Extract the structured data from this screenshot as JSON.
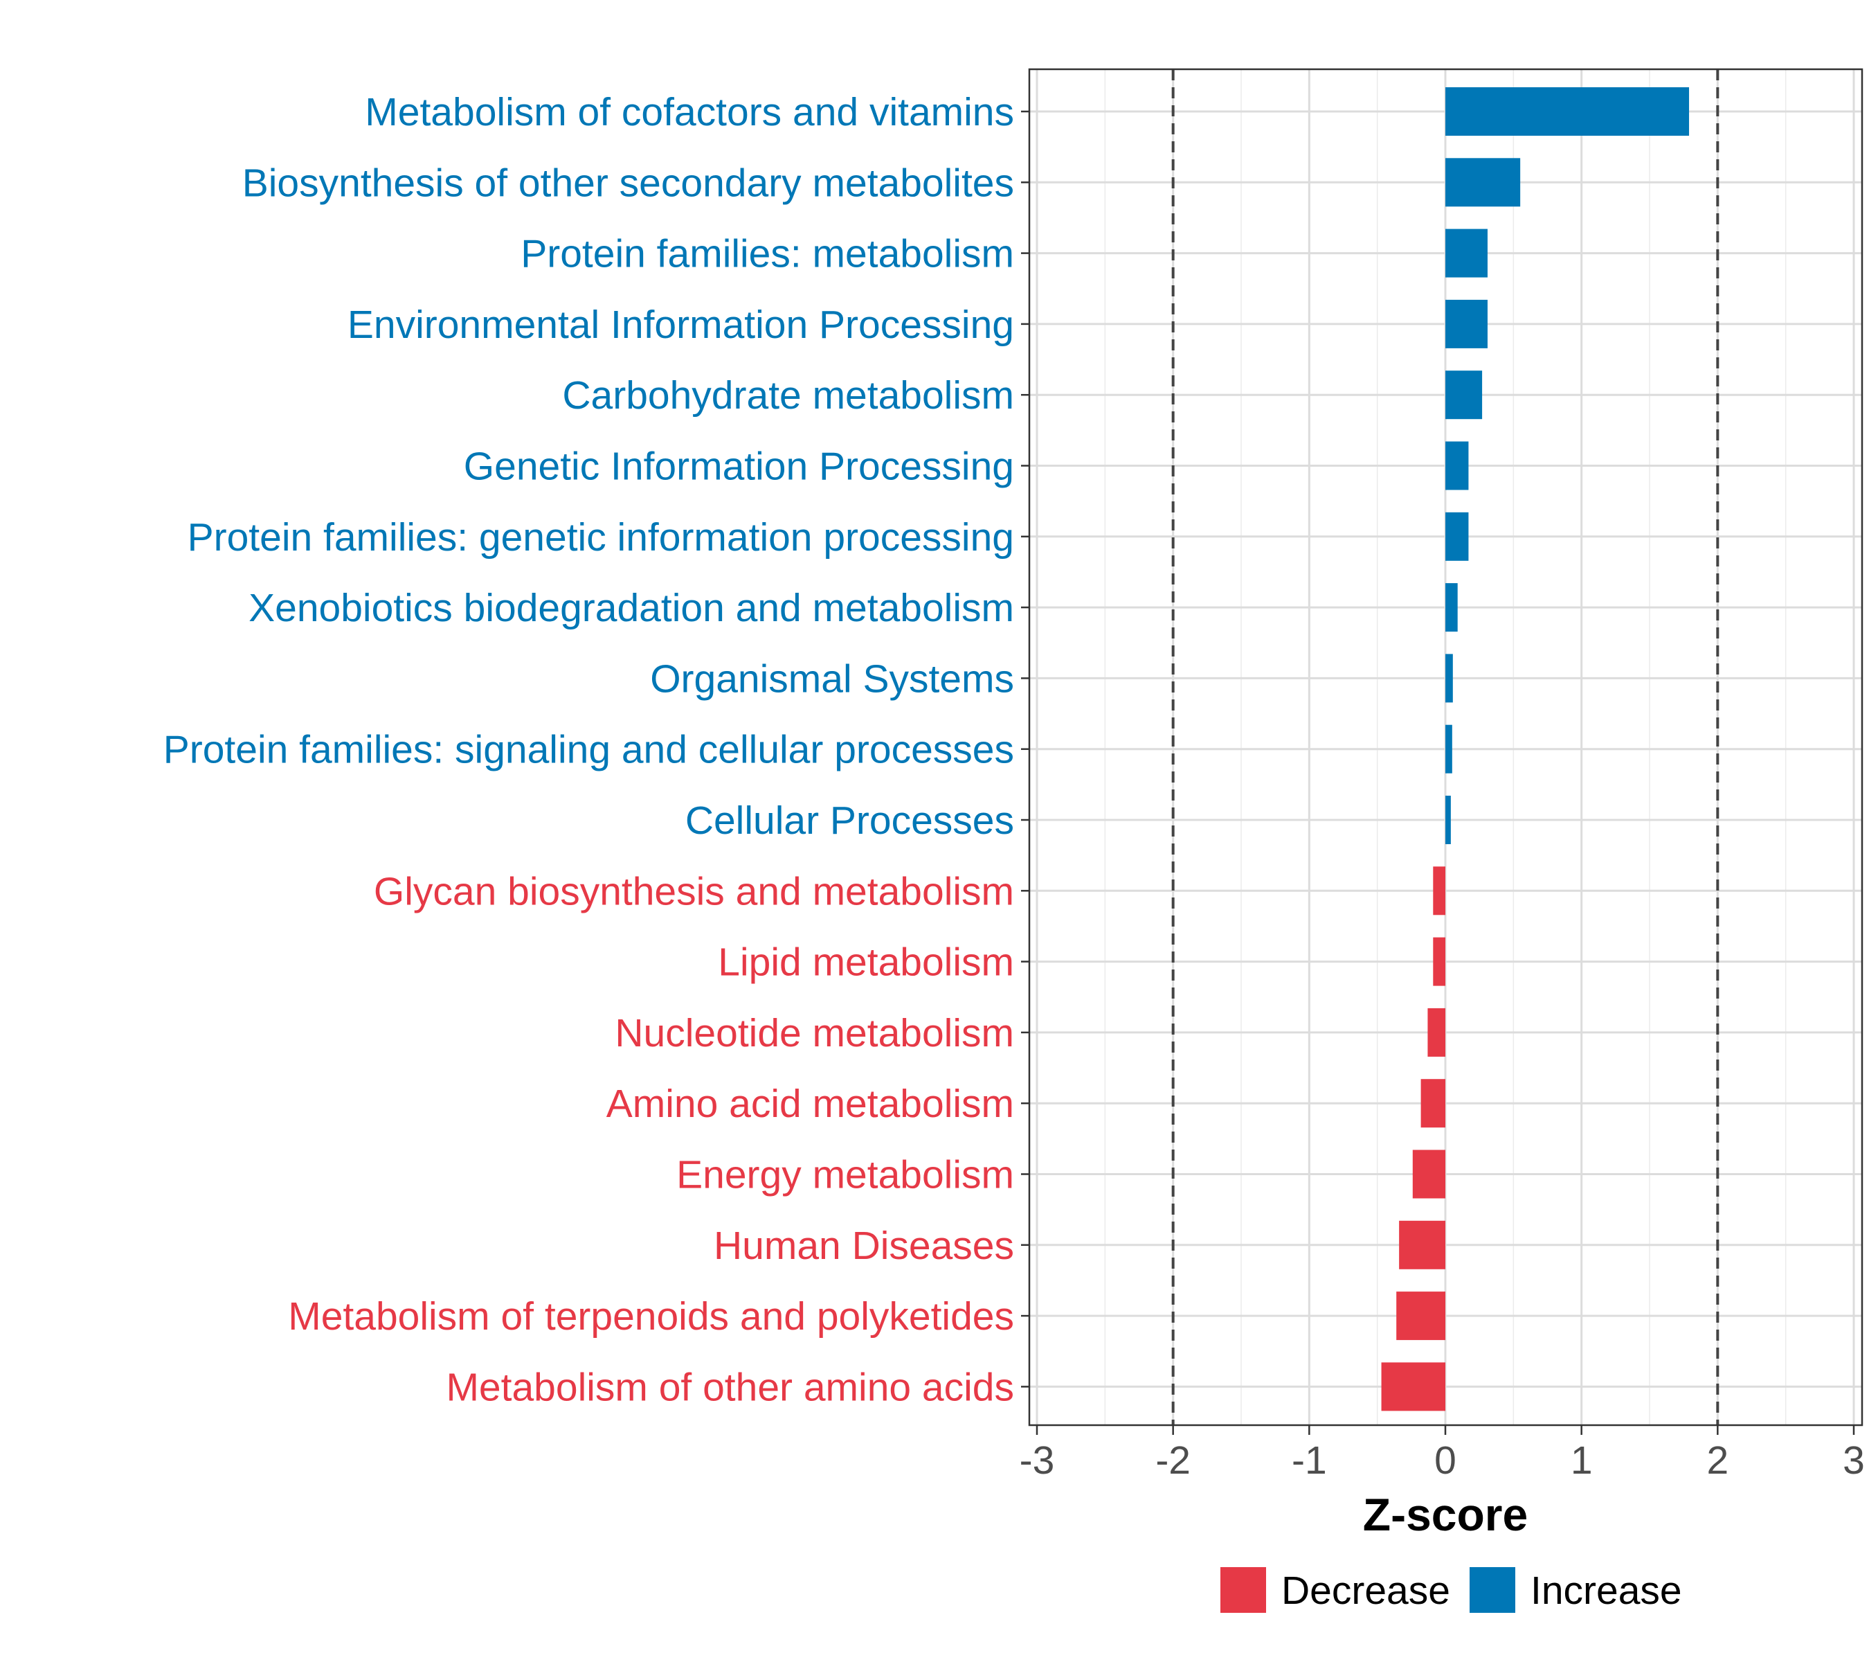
{
  "chart_data": {
    "type": "bar",
    "orientation": "horizontal",
    "title": "",
    "xlabel": "Z-score",
    "ylabel": "",
    "xlim": [
      -3,
      3
    ],
    "x_ticks": [
      "-3",
      "-2",
      "-1",
      "0",
      "1",
      "2",
      "3"
    ],
    "reference_lines": [
      -2,
      2
    ],
    "grid": true,
    "categories": [
      "Metabolism of cofactors and vitamins",
      "Biosynthesis of other secondary metabolites",
      "Protein families: metabolism",
      "Environmental Information Processing",
      "Carbohydrate metabolism",
      "Genetic Information Processing",
      "Protein families: genetic information processing",
      "Xenobiotics biodegradation and metabolism",
      "Organismal Systems",
      "Protein families: signaling and cellular processes",
      "Cellular Processes",
      "Glycan biosynthesis and metabolism",
      "Lipid metabolism",
      "Nucleotide metabolism",
      "Amino acid metabolism",
      "Energy metabolism",
      "Human Diseases",
      "Metabolism of terpenoids and polyketides",
      "Metabolism of other amino acids"
    ],
    "values": [
      1.79,
      0.55,
      0.31,
      0.31,
      0.27,
      0.17,
      0.17,
      0.09,
      0.055,
      0.05,
      0.04,
      -0.09,
      -0.09,
      -0.13,
      -0.18,
      -0.24,
      -0.34,
      -0.36,
      -0.47
    ],
    "groups": [
      "Increase",
      "Increase",
      "Increase",
      "Increase",
      "Increase",
      "Increase",
      "Increase",
      "Increase",
      "Increase",
      "Increase",
      "Increase",
      "Decrease",
      "Decrease",
      "Decrease",
      "Decrease",
      "Decrease",
      "Decrease",
      "Decrease",
      "Decrease"
    ],
    "legend": {
      "position": "bottom",
      "items": [
        {
          "label": "Decrease",
          "color": "#e63946"
        },
        {
          "label": "Increase",
          "color": "#0077b6"
        }
      ]
    },
    "colors": {
      "Decrease": "#e63946",
      "Increase": "#0077b6"
    }
  }
}
